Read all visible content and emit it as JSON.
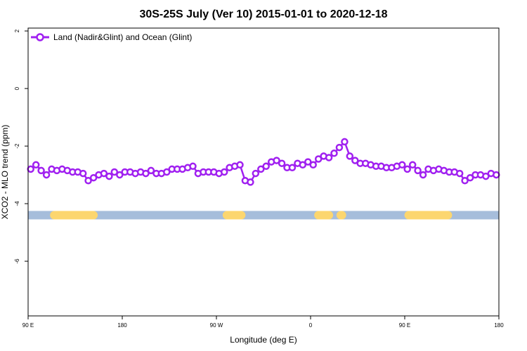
{
  "chart_data": {
    "type": "line",
    "title": "30S-25S July (Ver 10)   2015-01-01 to 2020-12-18",
    "xlabel": "Longitude (deg E)",
    "ylabel": "XCO2 - MLO trend (ppm)",
    "xlim": [
      90,
      450
    ],
    "ylim": [
      -7.9,
      2.1
    ],
    "x_ticks": [
      {
        "value": 90,
        "label": "90 E"
      },
      {
        "value": 162,
        "label": "180"
      },
      {
        "value": 234,
        "label": "90 W"
      },
      {
        "value": 306,
        "label": "0"
      },
      {
        "value": 378,
        "label": "90 E"
      },
      {
        "value": 450,
        "label": "180"
      }
    ],
    "y_ticks": [
      {
        "value": 2,
        "label": "2"
      },
      {
        "value": 0,
        "label": "0"
      },
      {
        "value": -2,
        "label": "-2"
      },
      {
        "value": -4,
        "label": "-4"
      },
      {
        "value": -6,
        "label": "-6"
      }
    ],
    "grid": false,
    "legend_position": "top-left",
    "series": [
      {
        "name": "Land (Nadir&Glint) and Ocean (Glint)",
        "color": "#a020f0",
        "x": [
          92,
          96,
          100,
          104,
          108,
          112,
          116,
          120,
          124,
          128,
          132,
          136,
          140,
          144,
          148,
          152,
          156,
          160,
          164,
          168,
          172,
          176,
          180,
          184,
          188,
          192,
          196,
          200,
          204,
          208,
          212,
          216,
          220,
          224,
          228,
          232,
          236,
          240,
          244,
          248,
          252,
          256,
          260,
          264,
          268,
          272,
          276,
          280,
          284,
          288,
          292,
          296,
          300,
          304,
          308,
          312,
          316,
          320,
          324,
          328,
          332,
          336,
          340,
          344,
          348,
          352,
          356,
          360,
          364,
          368,
          372,
          376,
          380,
          384,
          388,
          392,
          396,
          400,
          404,
          408,
          412,
          416,
          420,
          424,
          428,
          432,
          436,
          440,
          444,
          448
        ],
        "y": [
          -2.8,
          -2.65,
          -2.85,
          -3.0,
          -2.8,
          -2.85,
          -2.8,
          -2.85,
          -2.9,
          -2.9,
          -2.95,
          -3.2,
          -3.1,
          -3.0,
          -2.95,
          -3.05,
          -2.9,
          -3.0,
          -2.9,
          -2.9,
          -2.95,
          -2.9,
          -2.95,
          -2.85,
          -2.95,
          -2.95,
          -2.9,
          -2.8,
          -2.8,
          -2.8,
          -2.75,
          -2.7,
          -2.95,
          -2.9,
          -2.9,
          -2.9,
          -2.95,
          -2.9,
          -2.75,
          -2.7,
          -2.65,
          -3.2,
          -3.25,
          -2.95,
          -2.8,
          -2.7,
          -2.55,
          -2.5,
          -2.6,
          -2.75,
          -2.75,
          -2.6,
          -2.65,
          -2.55,
          -2.65,
          -2.45,
          -2.35,
          -2.4,
          -2.25,
          -2.05,
          -1.85,
          -2.35,
          -2.5,
          -2.6,
          -2.6,
          -2.65,
          -2.7,
          -2.7,
          -2.75,
          -2.75,
          -2.7,
          -2.65,
          -2.8,
          -2.65,
          -2.85,
          -3.0,
          -2.8,
          -2.85,
          -2.8,
          -2.85,
          -2.9,
          -2.9,
          -2.95,
          -3.2,
          -3.1,
          -3.0,
          -3.0,
          -3.05,
          -2.95,
          -3.0
        ]
      }
    ],
    "surface_band": {
      "y": -4.4,
      "base_color": "#a6bddb",
      "land_color": "#fcd66f",
      "land_ranges": [
        [
          110,
          140
        ],
        [
          242,
          253
        ],
        [
          312,
          320
        ],
        [
          329,
          330
        ],
        [
          381,
          411
        ]
      ]
    }
  }
}
